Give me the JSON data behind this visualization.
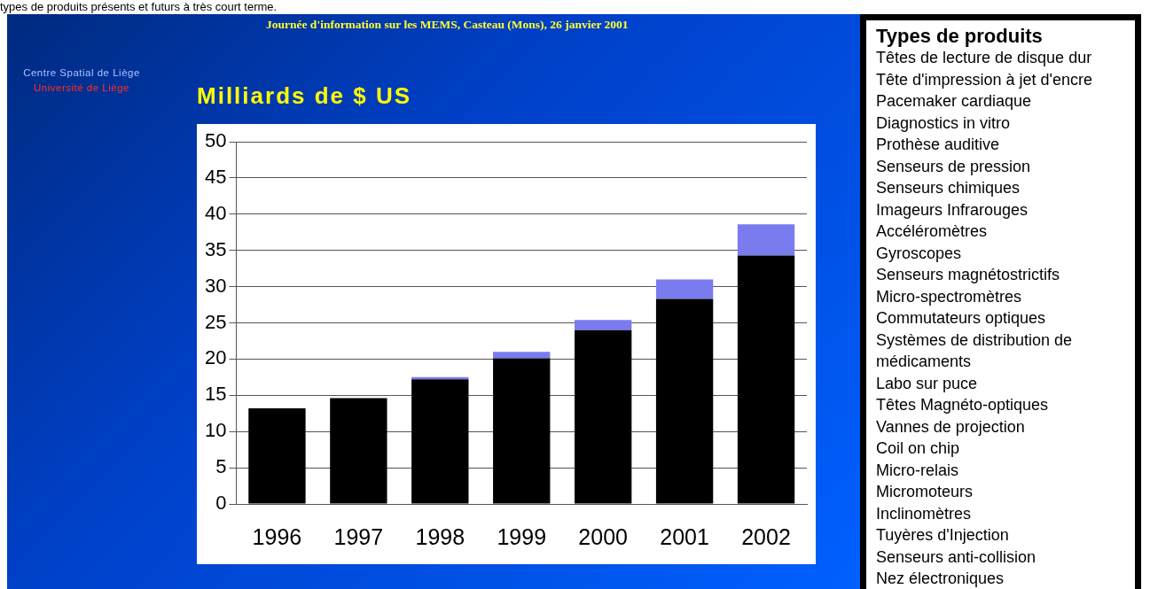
{
  "chart_data": [
    {
      "type": "bar",
      "title": "Milliards de $ US",
      "categories": [
        "1996",
        "1997",
        "1998",
        "1999",
        "2000",
        "2001",
        "2002"
      ],
      "stacked": true,
      "series": [
        {
          "color": "#000000",
          "values": [
            13.2,
            14.6,
            17.2,
            20.1,
            24,
            28.3,
            34.3
          ]
        },
        {
          "color": "#7b7bf0",
          "values": [
            0,
            0,
            0.3,
            0.9,
            1.4,
            2.7,
            4.3
          ]
        }
      ],
      "ylim": [
        0,
        50
      ],
      "yticks": [
        0,
        5,
        10,
        15,
        20,
        25,
        30,
        35,
        40,
        45,
        50
      ],
      "grid": "y",
      "legend": false,
      "annotations": [
        "types de produits présents et futurs à très court terme.",
        "Journée d'information sur les MEMS, Casteau (Mons), 26 janvier 2001",
        "Centre Spatial de Liège",
        "Université de Liège"
      ]
    },
    {
      "type": "other",
      "title": "Types de produits",
      "annotations": [
        "Têtes de lecture de disque dur",
        "Tête d'impression à jet d'encre",
        "Pacemaker cardiaque",
        "Diagnostics in vitro",
        "Prothèse auditive",
        "Senseurs de pression",
        "Senseurs chimiques",
        "Imageurs Infrarouges",
        "Accéléromètres",
        "Gyroscopes",
        "Senseurs magnétostrictifs",
        "Micro-spectromètres",
        "Commutateurs optiques",
        "Systèmes de distribution de médicaments",
        "Labo sur puce",
        "Têtes Magnéto-optiques",
        "Vannes de projection",
        "Coil on chip",
        "Micro-relais",
        "Micromoteurs",
        "Inclinomètres",
        "Tuyères d'Injection",
        "Senseurs anti-collision",
        "Nez électroniques"
      ]
    }
  ]
}
